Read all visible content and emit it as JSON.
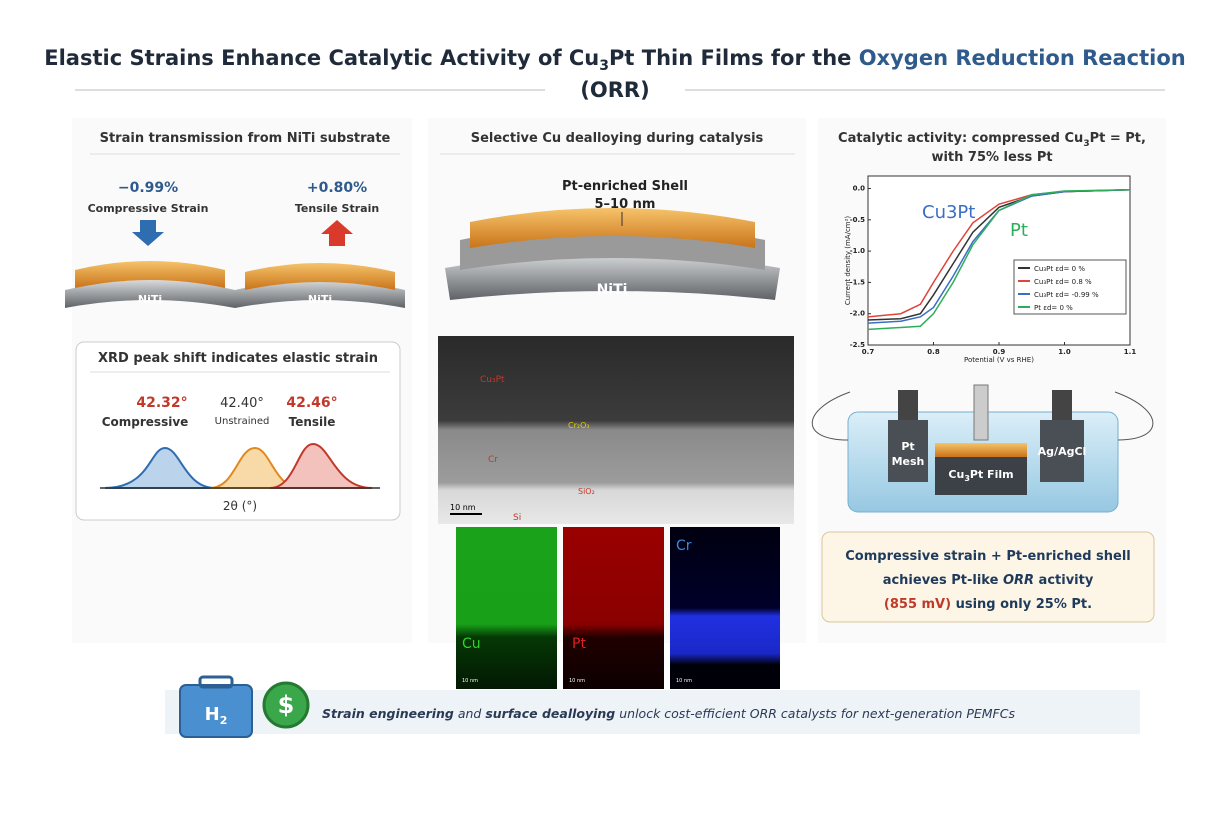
{
  "header": {
    "title_parts": [
      "Elastic Strains Enhance Catalytic Activity of Cu",
      "3",
      "Pt Thin Films for the ",
      "Oxygen Reduction Reaction"
    ],
    "title_line2": "(ORR)"
  },
  "left": {
    "heading": "Strain transmission from NiTi substrate",
    "compressive_value": "−0.99%",
    "compressive_label": "Compressive Strain",
    "tensile_value": "+0.80%",
    "tensile_label": "Tensile Strain",
    "substrate": "NiTi",
    "xrd": {
      "heading": "XRD peak shift indicates elastic strain",
      "peaks": [
        {
          "angle": "42.32°",
          "label": "Compressive"
        },
        {
          "angle": "42.40°",
          "label": "Unstrained"
        },
        {
          "angle": "42.46°",
          "label": "Tensile"
        }
      ],
      "axis": "2θ (°)"
    }
  },
  "middle": {
    "heading": "Selective Cu dealloying during catalysis",
    "shell_label": "Pt-enriched Shell",
    "shell_thickness": "5–10 nm",
    "substrate": "NiTi",
    "tem": {
      "layers": [
        "Cu₃Pt",
        "Cr₂O₃",
        "Cr",
        "SiO₂",
        "Si"
      ],
      "scale": "10 nm"
    },
    "eds": {
      "maps": [
        "Cu",
        "Pt",
        "Cr"
      ],
      "scale": "10 nm"
    }
  },
  "right": {
    "heading_line1_parts": [
      "Catalytic activity: compressed Cu",
      "3",
      "Pt = Pt,"
    ],
    "heading_line2": "with 75% less Pt",
    "cell": {
      "counter": [
        "Pt",
        "Mesh"
      ],
      "working": [
        "Cu",
        "3",
        "Pt Film"
      ],
      "reference": "Ag/AgCl"
    },
    "conclusion": {
      "line1": "Compressive strain + Pt-enriched shell",
      "line2_parts": [
        "achieves Pt-like ",
        "ORR",
        " activity"
      ],
      "line3_parts": [
        "(855 mV)",
        " using only 25% Pt."
      ]
    }
  },
  "chart_data": {
    "type": "line",
    "x_label": "Potential (V vs RHE)",
    "y_label": "Current density (mA/cm²)",
    "x": [
      0.7,
      0.75,
      0.78,
      0.8,
      0.83,
      0.86,
      0.9,
      0.95,
      1.0,
      1.1
    ],
    "series": [
      {
        "name": "Cu₃Pt εd= 0 %",
        "color": "#333333",
        "values": [
          -2.1,
          -2.08,
          -2.0,
          -1.7,
          -1.2,
          -0.7,
          -0.3,
          -0.12,
          -0.05,
          -0.02
        ]
      },
      {
        "name": "Cu₃Pt εd= 0.8 %",
        "color": "#e0433a",
        "values": [
          -2.05,
          -2.0,
          -1.85,
          -1.5,
          -1.0,
          -0.55,
          -0.25,
          -0.1,
          -0.05,
          -0.02
        ]
      },
      {
        "name": "Cu₃Pt εd= -0.99 %",
        "color": "#3a6fc4",
        "values": [
          -2.15,
          -2.12,
          -2.05,
          -1.9,
          -1.4,
          -0.85,
          -0.35,
          -0.12,
          -0.05,
          -0.02
        ]
      },
      {
        "name": "Pt εd= 0 %",
        "color": "#2fae5a",
        "values": [
          -2.25,
          -2.22,
          -2.2,
          -2.0,
          -1.5,
          -0.9,
          -0.35,
          -0.1,
          -0.04,
          -0.02
        ]
      }
    ],
    "annotations": [
      "Cu3Pt",
      "Pt"
    ],
    "xlim": [
      0.7,
      1.1
    ],
    "xticks": [
      0.7,
      0.8,
      0.9,
      {
        "value": 1.0,
        "label": "1.0"
      },
      1.1
    ],
    "ylim": [
      -2.5,
      0.2
    ],
    "yticks": [
      {
        "value": 0.0,
        "label": "0.0"
      },
      -0.5,
      {
        "value": -1.0,
        "label": "-1.0"
      },
      -1.5,
      {
        "value": -2.0,
        "label": "-2.0"
      },
      -2.5
    ]
  },
  "footer": {
    "badge": [
      "H",
      "2"
    ],
    "coin": "$",
    "text_parts": [
      "Strain engineering",
      " and ",
      "surface dealloying",
      " unlock cost-efficient ORR catalysts for next-generation PEMFCs"
    ]
  }
}
